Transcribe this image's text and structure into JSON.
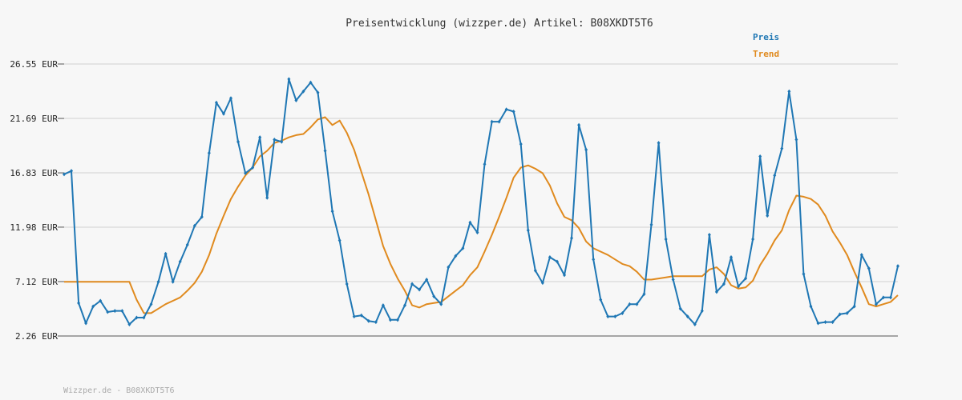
{
  "chart_data": {
    "type": "line",
    "title": "Preisentwicklung (wizzper.de) Artikel: B08XKDT5T6",
    "y_ticks": [
      "26.55 EUR",
      "21.69 EUR",
      "16.83 EUR",
      "11.98 EUR",
      "7.12 EUR",
      "2.26 EUR"
    ],
    "y_tick_values": [
      26.55,
      21.69,
      16.83,
      11.98,
      7.12,
      2.26
    ],
    "ylim": [
      2.26,
      26.55
    ],
    "grid": true,
    "legend_position": "top-right",
    "series": [
      {
        "name": "Preis",
        "color": "#1f77b4",
        "values": [
          16.7,
          17.0,
          5.2,
          3.4,
          4.9,
          5.4,
          4.4,
          4.5,
          4.5,
          3.3,
          3.9,
          3.9,
          5.1,
          7.1,
          9.6,
          7.1,
          8.9,
          10.4,
          12.1,
          12.9,
          18.6,
          23.1,
          22.1,
          23.5,
          19.6,
          16.8,
          17.3,
          20.0,
          14.6,
          19.8,
          19.6,
          25.2,
          23.3,
          24.1,
          24.9,
          24.0,
          18.8,
          13.4,
          10.8,
          6.9,
          4.0,
          4.1,
          3.6,
          3.5,
          5.0,
          3.7,
          3.7,
          5.0,
          6.9,
          6.4,
          7.3,
          5.8,
          5.1,
          8.4,
          9.4,
          10.1,
          12.4,
          11.5,
          17.6,
          21.4,
          21.4,
          22.5,
          22.3,
          19.4,
          11.7,
          8.1,
          7.0,
          9.3,
          8.9,
          7.7,
          11.0,
          21.1,
          18.9,
          9.1,
          5.5,
          4.0,
          4.0,
          4.3,
          5.1,
          5.1,
          6.0,
          12.2,
          19.5,
          10.9,
          7.3,
          4.7,
          4.0,
          3.3,
          4.5,
          11.3,
          6.2,
          6.9,
          9.3,
          6.7,
          7.4,
          10.9,
          18.3,
          13.0,
          16.6,
          19.0,
          24.1,
          19.8,
          7.8,
          4.9,
          3.4,
          3.5,
          3.5,
          4.2,
          4.3,
          4.9,
          9.5,
          8.3,
          5.1,
          5.7,
          5.7,
          8.5
        ]
      },
      {
        "name": "Trend",
        "color": "#e08a1e",
        "values": [
          7.1,
          7.1,
          7.1,
          7.1,
          7.1,
          7.1,
          7.1,
          7.1,
          7.1,
          7.1,
          5.5,
          4.3,
          4.3,
          4.7,
          5.1,
          5.4,
          5.7,
          6.3,
          7.0,
          8.0,
          9.5,
          11.4,
          13.0,
          14.5,
          15.6,
          16.6,
          17.3,
          18.3,
          18.8,
          19.5,
          19.7,
          20.0,
          20.2,
          20.3,
          20.9,
          21.6,
          21.8,
          21.1,
          21.5,
          20.4,
          18.9,
          16.9,
          14.9,
          12.6,
          10.3,
          8.7,
          7.4,
          6.3,
          5.0,
          4.8,
          5.1,
          5.2,
          5.3,
          5.8,
          6.3,
          6.8,
          7.7,
          8.4,
          9.8,
          11.3,
          12.9,
          14.6,
          16.4,
          17.3,
          17.5,
          17.2,
          16.8,
          15.7,
          14.1,
          12.9,
          12.6,
          11.9,
          10.7,
          10.1,
          9.8,
          9.5,
          9.1,
          8.7,
          8.5,
          8.0,
          7.3,
          7.3,
          7.4,
          7.5,
          7.6,
          7.6,
          7.6,
          7.6,
          7.6,
          8.2,
          8.4,
          7.8,
          6.8,
          6.5,
          6.6,
          7.2,
          8.6,
          9.6,
          10.8,
          11.7,
          13.5,
          14.8,
          14.7,
          14.5,
          14.0,
          13.0,
          11.6,
          10.6,
          9.5,
          8.0,
          6.6,
          5.1,
          4.9,
          5.1,
          5.3,
          5.9
        ]
      }
    ],
    "footer": "Wizzper.de - B08XKDT5T6"
  }
}
